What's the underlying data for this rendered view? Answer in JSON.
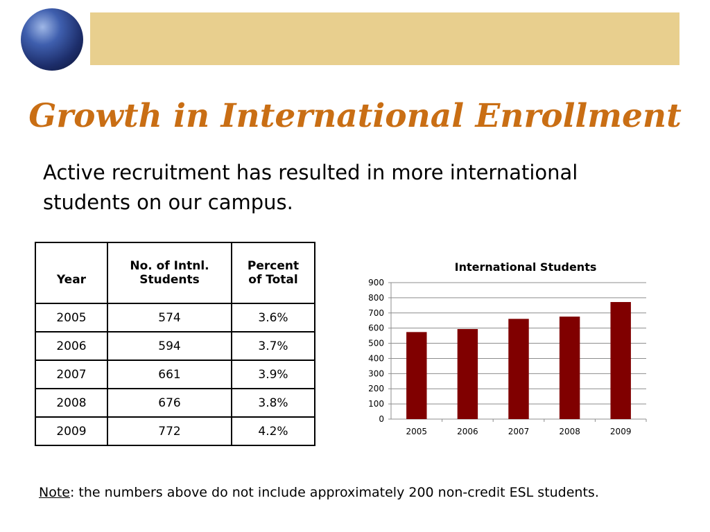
{
  "slide": {
    "title": "Growth in International Enrollment",
    "subtitle": "Active recruitment has resulted in more international students on our campus."
  },
  "table": {
    "headers": [
      "Year",
      "No. of Intnl. Students",
      "Percent of Total"
    ],
    "rows": [
      [
        "2005",
        "574",
        "3.6%"
      ],
      [
        "2006",
        "594",
        "3.7%"
      ],
      [
        "2007",
        "661",
        "3.9%"
      ],
      [
        "2008",
        "676",
        "3.8%"
      ],
      [
        "2009",
        "772",
        "4.2%"
      ]
    ]
  },
  "chart_data": {
    "type": "bar",
    "title": "International Students",
    "categories": [
      "2005",
      "2006",
      "2007",
      "2008",
      "2009"
    ],
    "values": [
      574,
      594,
      661,
      676,
      772
    ],
    "ylim": [
      0,
      900
    ],
    "yticks": [
      0,
      100,
      200,
      300,
      400,
      500,
      600,
      700,
      800,
      900
    ],
    "grid": true,
    "bar_color": "#800000"
  },
  "note": {
    "label": "Note",
    "text": ": the numbers above do not include approximately 200 non-credit ESL students."
  },
  "colors": {
    "title": "#c96e14",
    "banner": "#e8cf8e"
  }
}
